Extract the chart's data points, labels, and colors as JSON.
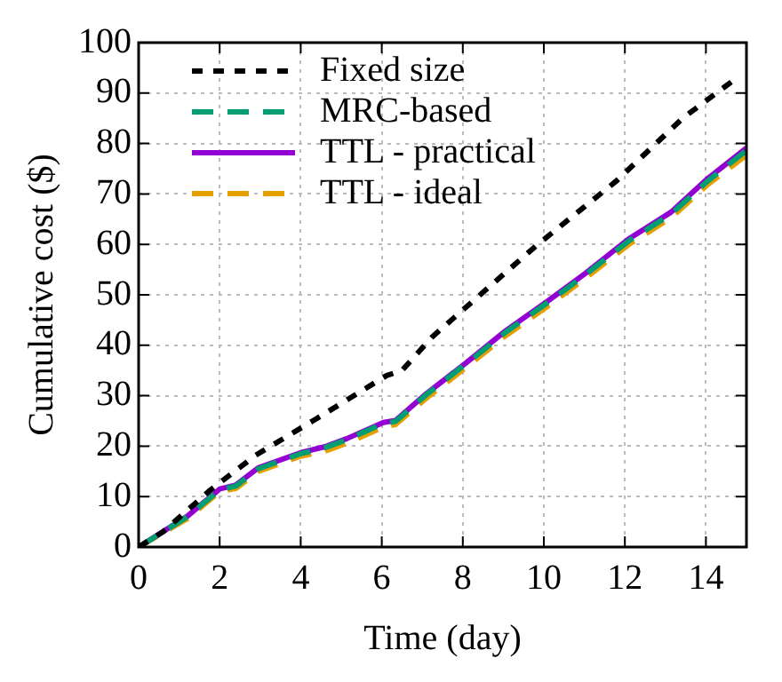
{
  "chart_data": {
    "type": "line",
    "xlabel": "Time (day)",
    "ylabel": "Cumulative cost ($)",
    "xlim": [
      0,
      15
    ],
    "xticks": [
      0,
      2,
      4,
      6,
      8,
      10,
      12,
      14
    ],
    "ylim": [
      0,
      100
    ],
    "yticks": [
      0,
      10,
      20,
      30,
      40,
      50,
      60,
      70,
      80,
      90,
      100
    ],
    "grid": true,
    "legend": "top left",
    "marker": "none",
    "series": [
      {
        "name": "Fixed size",
        "color": "#000000",
        "line_style": "dotted",
        "x": [
          0,
          0.6,
          1.74,
          2.87,
          4.38,
          6.12,
          6.5,
          7.25,
          9.82,
          11.78,
          13.44,
          14.76
        ],
        "values": [
          0,
          3,
          11.1,
          18.1,
          25.4,
          34,
          35,
          41.7,
          59.8,
          72.5,
          85.1,
          93
        ]
      },
      {
        "name": "MRC-based",
        "color": "#009e73",
        "line_style": "dashed",
        "x": [
          0,
          1.2,
          2,
          2.4,
          2.95,
          4,
          4.6,
          5.14,
          6.04,
          6.34,
          7.1,
          8.08,
          9.06,
          10.12,
          11.03,
          12.08,
          13.14,
          14.05,
          15
        ],
        "values": [
          0,
          6,
          11.3,
          12.1,
          15.5,
          18.5,
          19.7,
          21.3,
          24.5,
          24.9,
          30.2,
          36.3,
          42.6,
          48.6,
          54,
          60.6,
          66,
          72.6,
          78.6
        ]
      },
      {
        "name": "TTL - practical",
        "color": "#9400d3",
        "line_style": "solid",
        "x": [
          0,
          1.2,
          2,
          2.4,
          2.95,
          4,
          4.6,
          5.14,
          6.04,
          6.34,
          7.1,
          8.08,
          9.06,
          10.12,
          11.03,
          12.08,
          13.14,
          14.05,
          15
        ],
        "values": [
          0,
          6.1,
          11.5,
          12.3,
          15.7,
          18.7,
          19.9,
          21.5,
          24.7,
          25.1,
          30.4,
          36.5,
          42.9,
          48.9,
          54.3,
          61,
          66.4,
          73.1,
          79.1
        ]
      },
      {
        "name": "TTL - ideal",
        "color": "#e69f00",
        "line_style": "dashed",
        "x": [
          0,
          1.2,
          2,
          2.4,
          2.95,
          4,
          4.6,
          5.14,
          6.04,
          6.34,
          7.1,
          8.08,
          9.06,
          10.12,
          11.03,
          12.08,
          13.14,
          14.05,
          15
        ],
        "values": [
          0,
          5.6,
          11,
          11.6,
          15,
          18,
          19,
          20.6,
          23.8,
          24.3,
          29.5,
          35.6,
          41.9,
          47.9,
          53.3,
          59.9,
          65.3,
          71.9,
          77.7
        ]
      }
    ]
  }
}
